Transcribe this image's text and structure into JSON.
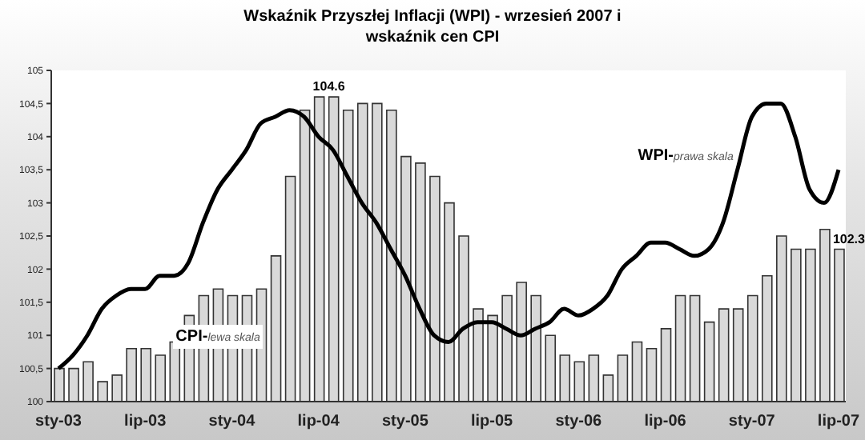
{
  "chart_data": {
    "type": "bar",
    "title": "Wskaźnik Przyszłej Inflacji (WPI) - wrzesień 2007 i wskaźnik cen CPI",
    "categories": [
      "sty-03",
      null,
      null,
      null,
      null,
      null,
      "lip-03",
      null,
      null,
      null,
      null,
      null,
      "sty-04",
      null,
      null,
      null,
      null,
      null,
      "lip-04",
      null,
      null,
      null,
      null,
      null,
      "sty-05",
      null,
      null,
      null,
      null,
      null,
      "lip-05",
      null,
      null,
      null,
      null,
      null,
      "sty-06",
      null,
      null,
      null,
      null,
      null,
      "lip-06",
      null,
      null,
      null,
      null,
      null,
      "sty-07",
      null,
      null,
      null,
      null,
      null,
      "lip-07"
    ],
    "series": [
      {
        "name": "CPI-lewa skala",
        "color": "#d9d9d9",
        "values": [
          100.5,
          100.5,
          100.6,
          100.3,
          100.4,
          100.8,
          100.8,
          100.7,
          100.9,
          101.3,
          101.6,
          101.7,
          101.6,
          101.6,
          101.7,
          102.2,
          103.4,
          104.4,
          104.6,
          104.6,
          104.4,
          104.5,
          104.5,
          104.4,
          103.7,
          103.6,
          103.4,
          103.0,
          102.5,
          101.4,
          101.3,
          101.6,
          101.8,
          101.6,
          101.0,
          100.7,
          100.6,
          100.7,
          100.4,
          100.7,
          100.9,
          100.8,
          101.1,
          101.6,
          101.6,
          101.2,
          101.4,
          101.4,
          101.6,
          101.9,
          102.5,
          102.3,
          102.3,
          102.6,
          102.3
        ],
        "value_labels": [
          null,
          null,
          null,
          null,
          null,
          null,
          null,
          null,
          null,
          null,
          null,
          null,
          null,
          null,
          null,
          null,
          null,
          null,
          "104.6",
          null,
          null,
          null,
          null,
          null,
          null,
          null,
          null,
          null,
          null,
          null,
          null,
          null,
          null,
          null,
          null,
          null,
          null,
          null,
          null,
          null,
          null,
          null,
          null,
          null,
          null,
          null,
          null,
          null,
          null,
          null,
          null,
          null,
          null,
          null,
          "102.3"
        ]
      },
      {
        "name": "WPI-prawa skala",
        "type": "line",
        "color": "#000000",
        "values": [
          100.5,
          100.7,
          101.0,
          101.4,
          101.6,
          101.7,
          101.7,
          101.9,
          101.9,
          102.1,
          102.7,
          103.2,
          103.5,
          103.8,
          104.2,
          104.3,
          104.4,
          104.3,
          104.0,
          103.8,
          103.4,
          103.0,
          102.7,
          102.3,
          101.9,
          101.4,
          101.0,
          100.9,
          101.1,
          101.2,
          101.2,
          101.1,
          101.0,
          101.1,
          101.2,
          101.4,
          101.3,
          101.4,
          101.6,
          102.0,
          102.2,
          102.4,
          102.4,
          102.3,
          102.2,
          102.3,
          102.7,
          103.5,
          104.3,
          104.5,
          104.5,
          104.0,
          103.2,
          103.0,
          103.5
        ]
      }
    ],
    "ylim": [
      100,
      105
    ],
    "yticks": [
      {
        "value": 100,
        "label": "100"
      },
      {
        "value": 100.5,
        "label": "100,5"
      },
      {
        "value": 101,
        "label": "101"
      },
      {
        "value": 101.5,
        "label": "101,5"
      },
      {
        "value": 102,
        "label": "102"
      },
      {
        "value": 102.5,
        "label": "102,5"
      },
      {
        "value": 103,
        "label": "103"
      },
      {
        "value": 103.5,
        "label": "103,5"
      },
      {
        "value": 104,
        "label": "104"
      },
      {
        "value": 104.5,
        "label": "104,5"
      },
      {
        "value": 105,
        "label": "105"
      }
    ],
    "grid": false,
    "legend": false,
    "marker": "none",
    "line_style": "solid"
  }
}
